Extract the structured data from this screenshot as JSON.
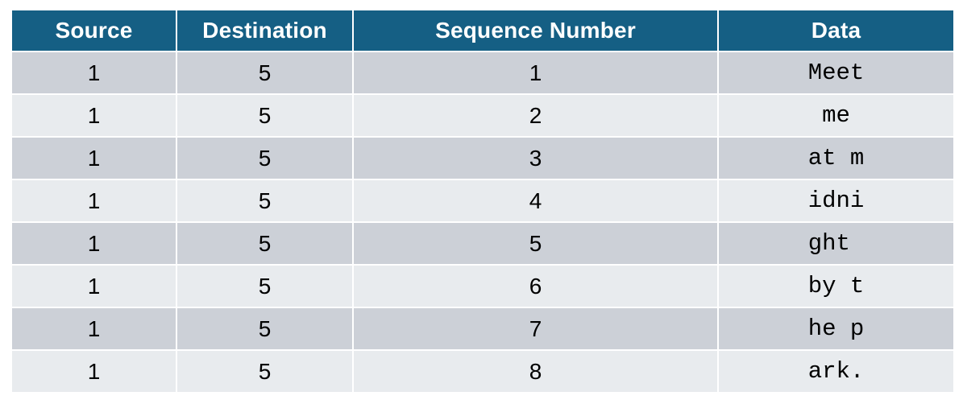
{
  "colors": {
    "header_bg": "#155f84",
    "header_text": "#ffffff",
    "row_dark": "#ccd0d7",
    "row_light": "#e8ebee"
  },
  "columns": [
    "Source",
    "Destination",
    "Sequence Number",
    "Data"
  ],
  "rows": [
    {
      "source": "1",
      "destination": "5",
      "sequence": "1",
      "data": "Meet"
    },
    {
      "source": "1",
      "destination": "5",
      "sequence": "2",
      "data": " me "
    },
    {
      "source": "1",
      "destination": "5",
      "sequence": "3",
      "data": "at m"
    },
    {
      "source": "1",
      "destination": "5",
      "sequence": "4",
      "data": "idni"
    },
    {
      "source": "1",
      "destination": "5",
      "sequence": "5",
      "data": "ght "
    },
    {
      "source": "1",
      "destination": "5",
      "sequence": "6",
      "data": "by t"
    },
    {
      "source": "1",
      "destination": "5",
      "sequence": "7",
      "data": "he p"
    },
    {
      "source": "1",
      "destination": "5",
      "sequence": "8",
      "data": "ark."
    }
  ]
}
